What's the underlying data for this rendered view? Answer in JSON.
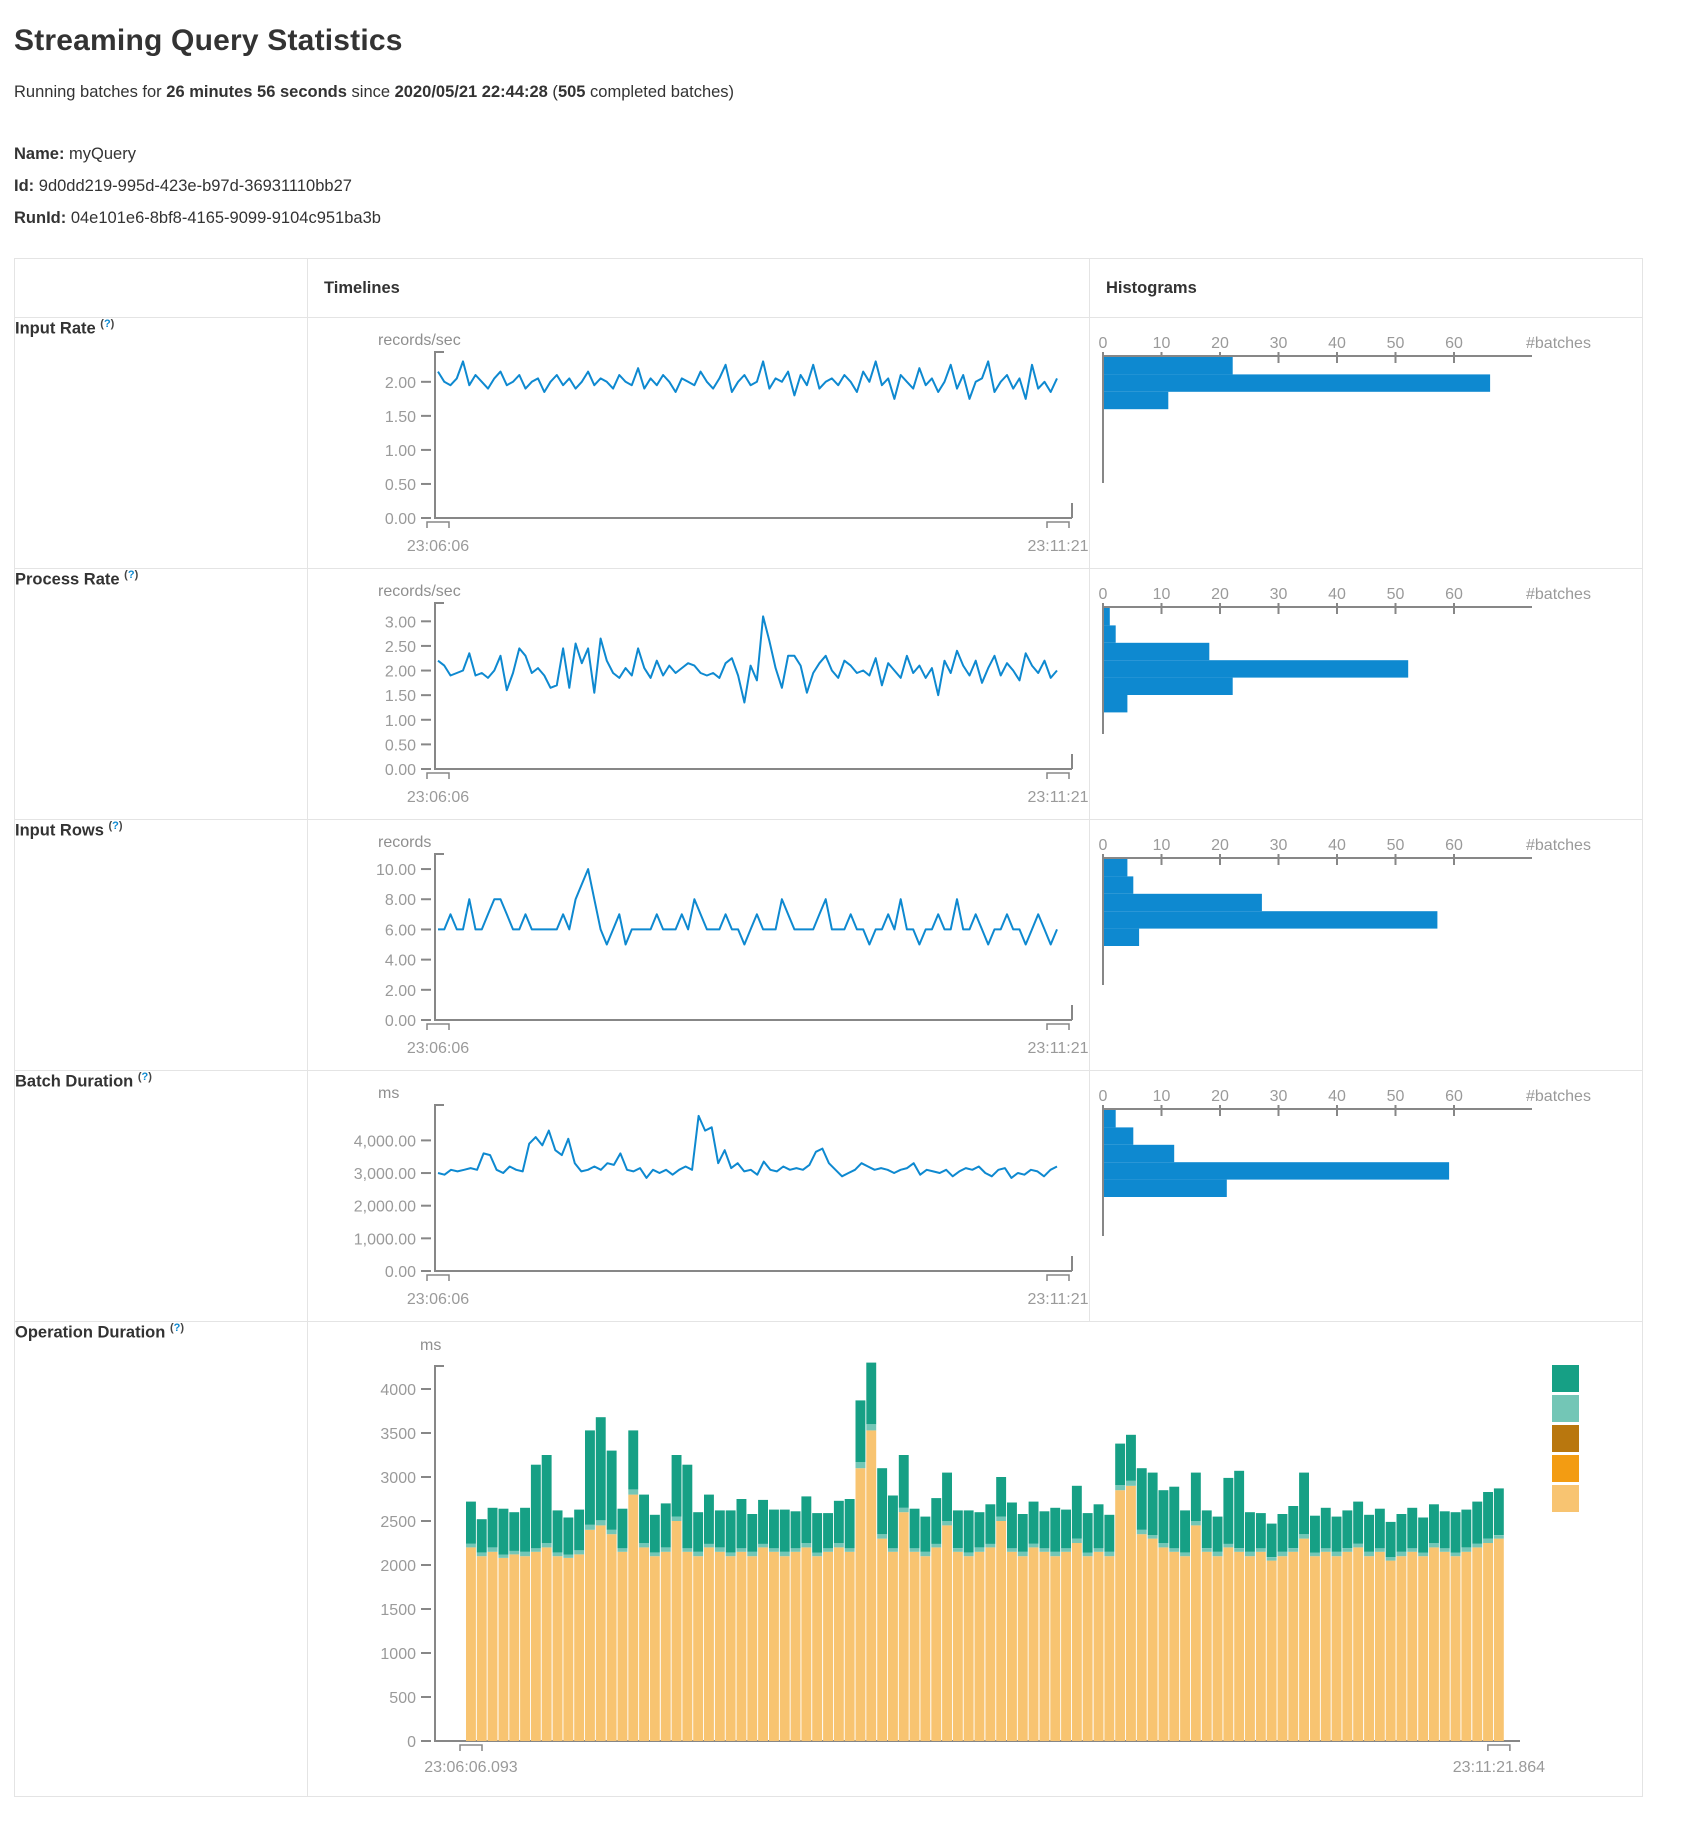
{
  "page": {
    "title": "Streaming Query Statistics",
    "summary": {
      "prefix": "Running batches for ",
      "duration": "26 minutes 56 seconds",
      "mid": " since ",
      "since": "2020/05/21 22:44:28",
      "open_paren": " (",
      "batches": "505",
      "suffix": " completed batches)"
    },
    "name_label": "Name:",
    "name_value": "myQuery",
    "id_label": "Id:",
    "id_value": "9d0dd219-995d-423e-b97d-36931110bb27",
    "runid_label": "RunId:",
    "runid_value": "04e101e6-8bf8-4165-9099-9104c951ba3b"
  },
  "table": {
    "col_timelines": "Timelines",
    "col_histograms": "Histograms",
    "help_open": "(",
    "help_q": "?",
    "help_close": ")"
  },
  "colors": {
    "blue": "#0E89D0",
    "axis_gray": "#878787",
    "text_gray": "#9a9a9a",
    "border": "#e4e4e4",
    "stack_green": "#16A085",
    "stack_light_teal": "#73C6B6",
    "stack_dark_amber": "#B9770E",
    "stack_orange": "#F39C12",
    "stack_light_orange": "#F8C471"
  },
  "chart_data": [
    {
      "row_label": "Input Rate",
      "type": "line",
      "unit": "records/sec",
      "x_start": "23:06:06",
      "x_end": "23:11:21",
      "ylim": [
        0,
        2.35
      ],
      "ytick_values": [
        0,
        0.5,
        1,
        1.5,
        2
      ],
      "ytick_labels": [
        "0.00",
        "0.50",
        "1.00",
        "1.50",
        "2.00"
      ],
      "values": [
        2.15,
        2.0,
        1.95,
        2.05,
        2.3,
        1.95,
        2.1,
        2.0,
        1.9,
        2.05,
        2.15,
        1.95,
        2.0,
        2.1,
        1.9,
        2.0,
        2.05,
        1.85,
        2.0,
        2.1,
        1.95,
        2.05,
        1.9,
        2.0,
        2.15,
        1.95,
        2.05,
        2.0,
        1.9,
        2.1,
        2.0,
        1.95,
        2.2,
        1.9,
        2.05,
        1.95,
        2.1,
        2.0,
        1.85,
        2.05,
        2.0,
        1.95,
        2.15,
        2.0,
        1.9,
        2.05,
        2.25,
        1.85,
        2.0,
        2.1,
        1.95,
        2.0,
        2.3,
        1.9,
        2.05,
        2.0,
        2.15,
        1.8,
        2.1,
        1.95,
        2.25,
        1.9,
        2.0,
        2.05,
        1.95,
        2.1,
        2.0,
        1.85,
        2.15,
        2.0,
        2.3,
        1.95,
        2.05,
        1.75,
        2.1,
        2.0,
        1.9,
        2.2,
        1.95,
        2.05,
        1.85,
        2.0,
        2.25,
        1.9,
        2.1,
        1.75,
        2.0,
        2.05,
        2.3,
        1.85,
        2.0,
        2.1,
        1.9,
        2.05,
        1.75,
        2.25,
        1.9,
        2.0,
        1.85,
        2.05
      ],
      "histogram": {
        "ticks": [
          0,
          10,
          20,
          30,
          40,
          50,
          60
        ],
        "label": "#batches",
        "bins": [
          22,
          66,
          11
        ]
      }
    },
    {
      "row_label": "Process Rate",
      "type": "line",
      "unit": "records/sec",
      "x_start": "23:06:06",
      "x_end": "23:11:21",
      "ylim": [
        0,
        3.25
      ],
      "ytick_values": [
        0,
        0.5,
        1,
        1.5,
        2,
        2.5,
        3
      ],
      "ytick_labels": [
        "0.00",
        "0.50",
        "1.00",
        "1.50",
        "2.00",
        "2.50",
        "3.00"
      ],
      "values": [
        2.2,
        2.1,
        1.9,
        1.95,
        2.0,
        2.35,
        1.9,
        1.95,
        1.85,
        2.0,
        2.3,
        1.6,
        1.95,
        2.45,
        2.3,
        1.95,
        2.05,
        1.9,
        1.65,
        1.7,
        2.45,
        1.65,
        2.55,
        2.15,
        2.45,
        1.55,
        2.65,
        2.2,
        1.95,
        1.85,
        2.05,
        1.9,
        2.45,
        2.05,
        1.85,
        2.2,
        1.9,
        2.1,
        1.95,
        2.05,
        2.15,
        2.1,
        1.95,
        1.9,
        1.95,
        1.85,
        2.15,
        2.25,
        1.9,
        1.35,
        2.1,
        1.8,
        3.1,
        2.6,
        2.05,
        1.65,
        2.3,
        2.3,
        2.1,
        1.55,
        1.95,
        2.15,
        2.3,
        2.0,
        1.85,
        2.2,
        2.1,
        1.95,
        2.0,
        1.9,
        2.25,
        1.7,
        2.15,
        2.0,
        1.85,
        2.3,
        1.95,
        2.1,
        1.85,
        2.05,
        1.5,
        2.2,
        1.95,
        2.4,
        2.1,
        1.9,
        2.2,
        1.75,
        2.05,
        2.3,
        1.9,
        2.15,
        2.0,
        1.8,
        2.35,
        2.1,
        1.95,
        2.2,
        1.85,
        2.0
      ],
      "histogram": {
        "ticks": [
          0,
          10,
          20,
          30,
          40,
          50,
          60
        ],
        "label": "#batches",
        "bins": [
          1,
          2,
          18,
          52,
          22,
          4
        ]
      }
    },
    {
      "row_label": "Input Rows",
      "type": "line",
      "unit": "records",
      "x_start": "23:06:06",
      "x_end": "23:11:21",
      "ylim": [
        0,
        10.6
      ],
      "ytick_values": [
        0,
        2,
        4,
        6,
        8,
        10
      ],
      "ytick_labels": [
        "0.00",
        "2.00",
        "4.00",
        "6.00",
        "8.00",
        "10.00"
      ],
      "values": [
        6,
        6,
        7,
        6,
        6,
        8,
        6,
        6,
        7,
        8,
        8,
        7,
        6,
        6,
        7,
        6,
        6,
        6,
        6,
        6,
        7,
        6,
        8,
        9,
        10,
        8,
        6,
        5,
        6,
        7,
        5,
        6,
        6,
        6,
        6,
        7,
        6,
        6,
        6,
        7,
        6,
        8,
        7,
        6,
        6,
        6,
        7,
        6,
        6,
        5,
        6,
        7,
        6,
        6,
        6,
        8,
        7,
        6,
        6,
        6,
        6,
        7,
        8,
        6,
        6,
        6,
        7,
        6,
        6,
        5,
        6,
        6,
        7,
        6,
        8,
        6,
        6,
        5,
        6,
        6,
        7,
        6,
        6,
        8,
        6,
        6,
        7,
        6,
        5,
        6,
        6,
        7,
        6,
        6,
        5,
        6,
        7,
        6,
        5,
        6
      ],
      "histogram": {
        "ticks": [
          0,
          10,
          20,
          30,
          40,
          50,
          60
        ],
        "label": "#batches",
        "bins": [
          4,
          5,
          27,
          57,
          6
        ]
      }
    },
    {
      "row_label": "Batch Duration",
      "type": "line",
      "unit": "ms",
      "x_start": "23:06:06",
      "x_end": "23:11:21",
      "ylim": [
        0,
        4900
      ],
      "ytick_values": [
        0,
        1000,
        2000,
        3000,
        4000
      ],
      "ytick_labels": [
        "0.00",
        "1,000.00",
        "2,000.00",
        "3,000.00",
        "4,000.00"
      ],
      "values": [
        3000,
        2950,
        3100,
        3050,
        3100,
        3150,
        3100,
        3600,
        3550,
        3100,
        3000,
        3200,
        3100,
        3050,
        3900,
        4100,
        3850,
        4300,
        3700,
        3550,
        4050,
        3300,
        3050,
        3100,
        3200,
        3100,
        3300,
        3250,
        3600,
        3100,
        3050,
        3150,
        2850,
        3100,
        3000,
        3100,
        2950,
        3100,
        3200,
        3100,
        4750,
        4300,
        4400,
        3300,
        3700,
        3150,
        3300,
        3050,
        3100,
        2950,
        3350,
        3100,
        3050,
        3200,
        3100,
        3150,
        3100,
        3250,
        3650,
        3750,
        3300,
        3100,
        2900,
        3000,
        3100,
        3300,
        3200,
        3100,
        3150,
        3100,
        3000,
        3100,
        3150,
        3300,
        2950,
        3100,
        3050,
        3000,
        3100,
        2900,
        3050,
        3150,
        3100,
        3200,
        3000,
        2900,
        3100,
        3150,
        2850,
        3000,
        2950,
        3100,
        3050,
        2900,
        3100,
        3200
      ],
      "histogram": {
        "ticks": [
          0,
          10,
          20,
          30,
          40,
          50,
          60
        ],
        "label": "#batches",
        "bins": [
          2,
          5,
          12,
          59,
          21
        ]
      }
    },
    {
      "row_label": "Operation Duration",
      "type": "stacked",
      "unit": "ms",
      "x_start": "23:06:06.093",
      "x_end": "23:11:21.864",
      "ylim": [
        0,
        4400
      ],
      "ytick_values": [
        0,
        500,
        1000,
        1500,
        2000,
        2500,
        3000,
        3500,
        4000
      ],
      "ytick_labels": [
        "0",
        "500",
        "1000",
        "1500",
        "2000",
        "2500",
        "3000",
        "3500",
        "4000"
      ],
      "stack_colors": [
        "#F8C471",
        "#73C6B6",
        "#16A085"
      ],
      "legend_colors": [
        "#16A085",
        "#73C6B6",
        "#B9770E",
        "#F39C12",
        "#F8C471"
      ],
      "bars": [
        [
          2200,
          40,
          480
        ],
        [
          2100,
          40,
          380
        ],
        [
          2150,
          50,
          450
        ],
        [
          2080,
          40,
          520
        ],
        [
          2120,
          40,
          440
        ],
        [
          2100,
          50,
          500
        ],
        [
          2150,
          40,
          950
        ],
        [
          2200,
          50,
          1000
        ],
        [
          2100,
          40,
          480
        ],
        [
          2080,
          40,
          420
        ],
        [
          2120,
          50,
          460
        ],
        [
          2400,
          60,
          1070
        ],
        [
          2450,
          60,
          1170
        ],
        [
          2350,
          50,
          900
        ],
        [
          2150,
          40,
          450
        ],
        [
          2800,
          60,
          670
        ],
        [
          2200,
          50,
          550
        ],
        [
          2100,
          40,
          430
        ],
        [
          2150,
          50,
          500
        ],
        [
          2500,
          50,
          700
        ],
        [
          2150,
          40,
          950
        ],
        [
          2100,
          50,
          450
        ],
        [
          2200,
          40,
          560
        ],
        [
          2150,
          50,
          420
        ],
        [
          2100,
          40,
          480
        ],
        [
          2150,
          40,
          560
        ],
        [
          2100,
          50,
          430
        ],
        [
          2200,
          40,
          500
        ],
        [
          2150,
          40,
          440
        ],
        [
          2100,
          50,
          480
        ],
        [
          2150,
          40,
          420
        ],
        [
          2200,
          50,
          530
        ],
        [
          2100,
          40,
          450
        ],
        [
          2150,
          40,
          400
        ],
        [
          2200,
          50,
          480
        ],
        [
          2150,
          40,
          560
        ],
        [
          3100,
          70,
          700
        ],
        [
          3530,
          70,
          700
        ],
        [
          2300,
          50,
          750
        ],
        [
          2150,
          40,
          600
        ],
        [
          2600,
          50,
          600
        ],
        [
          2150,
          40,
          450
        ],
        [
          2100,
          50,
          400
        ],
        [
          2200,
          40,
          520
        ],
        [
          2450,
          50,
          550
        ],
        [
          2150,
          40,
          430
        ],
        [
          2100,
          40,
          480
        ],
        [
          2150,
          50,
          400
        ],
        [
          2200,
          40,
          450
        ],
        [
          2500,
          50,
          450
        ],
        [
          2150,
          40,
          520
        ],
        [
          2100,
          50,
          430
        ],
        [
          2200,
          40,
          480
        ],
        [
          2150,
          40,
          420
        ],
        [
          2100,
          50,
          500
        ],
        [
          2150,
          40,
          440
        ],
        [
          2250,
          50,
          600
        ],
        [
          2100,
          40,
          450
        ],
        [
          2150,
          40,
          500
        ],
        [
          2100,
          50,
          420
        ],
        [
          2850,
          60,
          470
        ],
        [
          2900,
          60,
          520
        ],
        [
          2350,
          50,
          700
        ],
        [
          2300,
          40,
          710
        ],
        [
          2200,
          50,
          600
        ],
        [
          2150,
          40,
          700
        ],
        [
          2100,
          40,
          480
        ],
        [
          2450,
          50,
          550
        ],
        [
          2150,
          40,
          430
        ],
        [
          2100,
          50,
          400
        ],
        [
          2200,
          40,
          750
        ],
        [
          2150,
          40,
          880
        ],
        [
          2100,
          50,
          450
        ],
        [
          2150,
          40,
          400
        ],
        [
          2050,
          40,
          380
        ],
        [
          2100,
          50,
          430
        ],
        [
          2150,
          40,
          480
        ],
        [
          2300,
          50,
          700
        ],
        [
          2100,
          40,
          420
        ],
        [
          2150,
          40,
          460
        ],
        [
          2100,
          50,
          400
        ],
        [
          2150,
          40,
          430
        ],
        [
          2200,
          40,
          480
        ],
        [
          2100,
          50,
          420
        ],
        [
          2150,
          40,
          450
        ],
        [
          2050,
          40,
          400
        ],
        [
          2100,
          50,
          430
        ],
        [
          2150,
          40,
          460
        ],
        [
          2100,
          40,
          400
        ],
        [
          2200,
          50,
          440
        ],
        [
          2150,
          40,
          420
        ],
        [
          2100,
          40,
          460
        ],
        [
          2150,
          50,
          430
        ],
        [
          2200,
          40,
          480
        ],
        [
          2250,
          50,
          530
        ],
        [
          2300,
          40,
          530
        ]
      ]
    }
  ]
}
